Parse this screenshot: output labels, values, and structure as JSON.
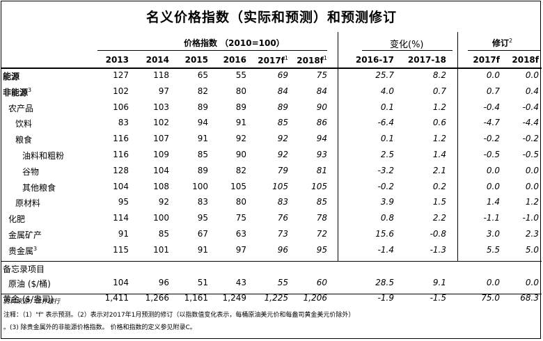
{
  "title": "名义价格指数（实际和预测）和预测修订",
  "group_headers": {
    "price_index": "价格指数 （2010=100）",
    "change": "变化(%)",
    "revision": "修订",
    "revision_sup": "2"
  },
  "year_headers": [
    {
      "text": "2013",
      "sup": ""
    },
    {
      "text": "2014",
      "sup": ""
    },
    {
      "text": "2015",
      "sup": ""
    },
    {
      "text": "2016",
      "sup": ""
    },
    {
      "text": "2017f",
      "sup": "1"
    },
    {
      "text": "2018f",
      "sup": "1"
    },
    {
      "text": "2016-17",
      "sup": ""
    },
    {
      "text": "2017-18",
      "sup": ""
    },
    {
      "text": "2017f",
      "sup": ""
    },
    {
      "text": "2018f",
      "sup": ""
    }
  ],
  "rows": [
    {
      "label": "能源",
      "sup": "",
      "indent": 0,
      "bold": true,
      "values": [
        "127",
        "118",
        "65",
        "55",
        "69",
        "75",
        "25.7",
        "8.2",
        "0.0",
        "0.0"
      ]
    },
    {
      "label": "非能源",
      "sup": "3",
      "indent": 0,
      "bold": true,
      "values": [
        "102",
        "97",
        "82",
        "80",
        "84",
        "84",
        "4.0",
        "0.7",
        "0.7",
        "0.4"
      ]
    },
    {
      "label": "农产品",
      "sup": "",
      "indent": 1,
      "bold": false,
      "values": [
        "106",
        "103",
        "89",
        "89",
        "89",
        "90",
        "0.1",
        "1.2",
        "-0.4",
        "-0.4"
      ]
    },
    {
      "label": "饮料",
      "sup": "",
      "indent": 2,
      "bold": false,
      "values": [
        "83",
        "102",
        "94",
        "91",
        "85",
        "86",
        "-6.4",
        "0.6",
        "-4.7",
        "-4.4"
      ]
    },
    {
      "label": "粮食",
      "sup": "",
      "indent": 2,
      "bold": false,
      "values": [
        "116",
        "107",
        "91",
        "92",
        "92",
        "94",
        "0.1",
        "1.2",
        "-0.2",
        "-0.2"
      ]
    },
    {
      "label": "油料和粗粉",
      "sup": "",
      "indent": 3,
      "bold": false,
      "values": [
        "116",
        "109",
        "85",
        "90",
        "92",
        "93",
        "2.5",
        "1.4",
        "-0.5",
        "-0.5"
      ]
    },
    {
      "label": "谷物",
      "sup": "",
      "indent": 3,
      "bold": false,
      "values": [
        "128",
        "104",
        "89",
        "82",
        "79",
        "81",
        "-3.2",
        "2.1",
        "0.0",
        "0.0"
      ]
    },
    {
      "label": "其他粮食",
      "sup": "",
      "indent": 3,
      "bold": false,
      "values": [
        "104",
        "108",
        "100",
        "105",
        "105",
        "105",
        "-0.2",
        "0.2",
        "0.0",
        "0.0"
      ]
    },
    {
      "label": "原材料",
      "sup": "",
      "indent": 2,
      "bold": false,
      "values": [
        "95",
        "92",
        "83",
        "80",
        "83",
        "85",
        "3.9",
        "1.5",
        "1.4",
        "1.2"
      ]
    },
    {
      "label": "化肥",
      "sup": "",
      "indent": 1,
      "bold": false,
      "values": [
        "114",
        "100",
        "95",
        "75",
        "76",
        "78",
        "0.8",
        "2.2",
        "-1.1",
        "-1.0"
      ]
    },
    {
      "label": "金属矿产",
      "sup": "",
      "indent": 1,
      "bold": false,
      "values": [
        "91",
        "85",
        "67",
        "63",
        "73",
        "72",
        "15.6",
        "-0.8",
        "3.0",
        "2.3"
      ]
    },
    {
      "label": "贵金属",
      "sup": "3",
      "indent": 1,
      "bold": false,
      "values": [
        "115",
        "101",
        "91",
        "97",
        "96",
        "95",
        "-1.4",
        "-1.3",
        "5.5",
        "5.0"
      ]
    }
  ],
  "memo": {
    "heading": "备忘录项目",
    "rows": [
      {
        "label": "原油 ($/桶)",
        "indent": 1,
        "values": [
          "104",
          "96",
          "51",
          "43",
          "55",
          "60",
          "28.5",
          "9.1",
          "0.0",
          "0.0"
        ]
      },
      {
        "label": "黄金 ($/盎司)",
        "indent": 0,
        "values": [
          "1,411",
          "1,266",
          "1,161",
          "1,249",
          "1,225",
          "1,206",
          "-1.9",
          "-1.5",
          "75.0",
          "68.3"
        ]
      }
    ]
  },
  "source": "资料来源：世界银行",
  "notes": [
    "注释：（1）\"f\" 表示预测。（2）表示对2017年1月预测的修订（以指数值变化表示，每桶原油美元价和每盎司黄金美元价除外）",
    "。(3) 除贵金属外的非能源价格指数。 价格和指数的定义参见附录C。"
  ]
}
